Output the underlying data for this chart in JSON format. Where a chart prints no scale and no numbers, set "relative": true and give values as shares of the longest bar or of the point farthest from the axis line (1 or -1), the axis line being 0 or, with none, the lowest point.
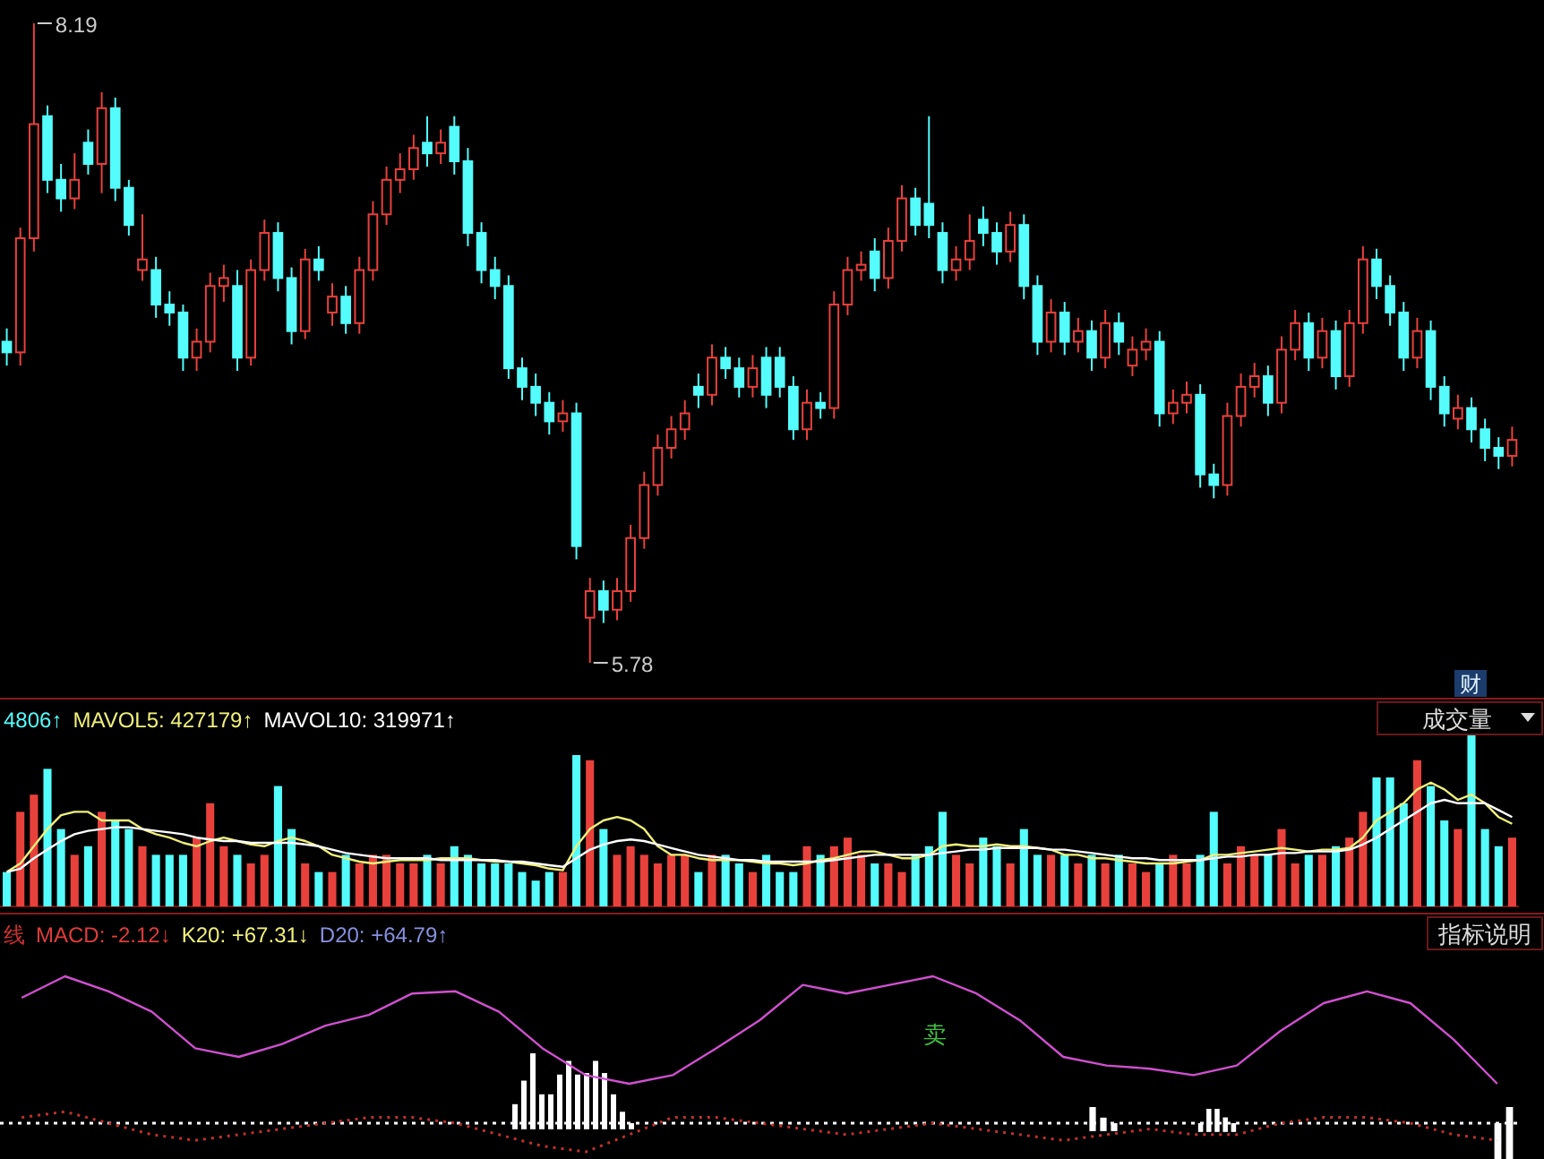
{
  "chart_data": [
    {
      "type": "candlestick",
      "categories": [
        null,
        null,
        null,
        null,
        null,
        null,
        null,
        null,
        null,
        null,
        null,
        null,
        null,
        null,
        null,
        null,
        null,
        null,
        null,
        null,
        null,
        null,
        null,
        null,
        null,
        null,
        null,
        null,
        null,
        null,
        null,
        null,
        null,
        null,
        null,
        null,
        null,
        null,
        null,
        null,
        null,
        null,
        null,
        null,
        null,
        null,
        null,
        null,
        null,
        null,
        null,
        null,
        null,
        null,
        null,
        null,
        null,
        null,
        null,
        null,
        null,
        null,
        null,
        null,
        null,
        null,
        null,
        null,
        null,
        null,
        null,
        null,
        null,
        null,
        null,
        null,
        null,
        null,
        null,
        null,
        null,
        null,
        null,
        null,
        null,
        null,
        null,
        null,
        null,
        null,
        null,
        null,
        null,
        null,
        null,
        null,
        null,
        null,
        null,
        null,
        null,
        null,
        null,
        null,
        null,
        null,
        null,
        null,
        null,
        null,
        null,
        null
      ],
      "ohlc": [
        [
          6.99,
          7.04,
          6.9,
          6.95
        ],
        [
          6.95,
          7.42,
          6.9,
          7.38
        ],
        [
          7.38,
          8.19,
          7.33,
          7.81
        ],
        [
          7.84,
          7.88,
          7.55,
          7.6
        ],
        [
          7.6,
          7.66,
          7.48,
          7.53
        ],
        [
          7.53,
          7.7,
          7.49,
          7.6
        ],
        [
          7.74,
          7.79,
          7.62,
          7.66
        ],
        [
          7.66,
          7.93,
          7.55,
          7.87
        ],
        [
          7.87,
          7.91,
          7.52,
          7.57
        ],
        [
          7.57,
          7.6,
          7.39,
          7.43
        ],
        [
          7.26,
          7.47,
          7.22,
          7.3
        ],
        [
          7.26,
          7.31,
          7.08,
          7.13
        ],
        [
          7.13,
          7.18,
          7.05,
          7.1
        ],
        [
          7.1,
          7.13,
          6.88,
          6.93
        ],
        [
          6.93,
          7.04,
          6.88,
          6.99
        ],
        [
          6.99,
          7.25,
          6.95,
          7.2
        ],
        [
          7.2,
          7.28,
          7.14,
          7.23
        ],
        [
          7.2,
          7.26,
          6.88,
          6.93
        ],
        [
          6.93,
          7.3,
          6.9,
          7.26
        ],
        [
          7.26,
          7.45,
          7.22,
          7.4
        ],
        [
          7.4,
          7.44,
          7.18,
          7.23
        ],
        [
          7.23,
          7.27,
          6.98,
          7.03
        ],
        [
          7.03,
          7.34,
          7.0,
          7.3
        ],
        [
          7.3,
          7.35,
          7.22,
          7.26
        ],
        [
          7.1,
          7.21,
          7.05,
          7.16
        ],
        [
          7.16,
          7.2,
          7.02,
          7.06
        ],
        [
          7.06,
          7.31,
          7.02,
          7.26
        ],
        [
          7.26,
          7.52,
          7.22,
          7.47
        ],
        [
          7.47,
          7.65,
          7.43,
          7.6
        ],
        [
          7.6,
          7.7,
          7.55,
          7.64
        ],
        [
          7.64,
          7.77,
          7.6,
          7.72
        ],
        [
          7.74,
          7.84,
          7.65,
          7.7
        ],
        [
          7.7,
          7.79,
          7.66,
          7.74
        ],
        [
          7.8,
          7.84,
          7.62,
          7.67
        ],
        [
          7.67,
          7.72,
          7.35,
          7.4
        ],
        [
          7.4,
          7.44,
          7.21,
          7.26
        ],
        [
          7.26,
          7.31,
          7.15,
          7.2
        ],
        [
          7.2,
          7.24,
          6.85,
          6.89
        ],
        [
          6.89,
          6.93,
          6.77,
          6.82
        ],
        [
          6.82,
          6.87,
          6.71,
          6.76
        ],
        [
          6.76,
          6.8,
          6.64,
          6.69
        ],
        [
          6.69,
          6.77,
          6.65,
          6.72
        ],
        [
          6.72,
          6.76,
          6.17,
          6.22
        ],
        [
          5.95,
          6.1,
          5.78,
          6.05
        ],
        [
          6.05,
          6.09,
          5.93,
          5.98
        ],
        [
          5.98,
          6.1,
          5.94,
          6.05
        ],
        [
          6.05,
          6.3,
          6.01,
          6.25
        ],
        [
          6.25,
          6.5,
          6.21,
          6.45
        ],
        [
          6.45,
          6.64,
          6.41,
          6.59
        ],
        [
          6.59,
          6.71,
          6.55,
          6.66
        ],
        [
          6.66,
          6.77,
          6.62,
          6.72
        ],
        [
          6.82,
          6.87,
          6.74,
          6.79
        ],
        [
          6.79,
          6.98,
          6.75,
          6.93
        ],
        [
          6.93,
          6.97,
          6.85,
          6.89
        ],
        [
          6.89,
          6.93,
          6.78,
          6.82
        ],
        [
          6.82,
          6.94,
          6.78,
          6.89
        ],
        [
          6.93,
          6.97,
          6.74,
          6.79
        ],
        [
          6.93,
          6.97,
          6.78,
          6.82
        ],
        [
          6.82,
          6.86,
          6.62,
          6.66
        ],
        [
          6.66,
          6.81,
          6.62,
          6.76
        ],
        [
          6.76,
          6.8,
          6.7,
          6.74
        ],
        [
          6.74,
          7.18,
          6.7,
          7.13
        ],
        [
          7.13,
          7.31,
          7.09,
          7.26
        ],
        [
          7.26,
          7.33,
          7.22,
          7.28
        ],
        [
          7.33,
          7.38,
          7.18,
          7.23
        ],
        [
          7.23,
          7.42,
          7.19,
          7.37
        ],
        [
          7.37,
          7.58,
          7.33,
          7.53
        ],
        [
          7.53,
          7.57,
          7.39,
          7.43
        ],
        [
          7.51,
          7.84,
          7.38,
          7.43
        ],
        [
          7.4,
          7.44,
          7.21,
          7.26
        ],
        [
          7.26,
          7.35,
          7.22,
          7.3
        ],
        [
          7.3,
          7.47,
          7.26,
          7.37
        ],
        [
          7.45,
          7.5,
          7.35,
          7.4
        ],
        [
          7.4,
          7.44,
          7.28,
          7.33
        ],
        [
          7.33,
          7.48,
          7.29,
          7.43
        ],
        [
          7.43,
          7.47,
          7.15,
          7.2
        ],
        [
          7.2,
          7.24,
          6.94,
          6.99
        ],
        [
          6.99,
          7.15,
          6.95,
          7.1
        ],
        [
          7.1,
          7.14,
          6.94,
          6.99
        ],
        [
          6.99,
          7.08,
          6.95,
          7.03
        ],
        [
          7.03,
          7.07,
          6.88,
          6.93
        ],
        [
          6.93,
          7.11,
          6.89,
          7.06
        ],
        [
          7.06,
          7.1,
          6.94,
          6.99
        ],
        [
          6.9,
          7.01,
          6.86,
          6.96
        ],
        [
          6.96,
          7.04,
          6.92,
          6.99
        ],
        [
          6.99,
          7.03,
          6.67,
          6.72
        ],
        [
          6.72,
          6.81,
          6.68,
          6.76
        ],
        [
          6.76,
          6.84,
          6.72,
          6.79
        ],
        [
          6.79,
          6.83,
          6.44,
          6.49
        ],
        [
          6.49,
          6.53,
          6.4,
          6.45
        ],
        [
          6.45,
          6.76,
          6.41,
          6.71
        ],
        [
          6.71,
          6.87,
          6.67,
          6.82
        ],
        [
          6.82,
          6.91,
          6.78,
          6.86
        ],
        [
          6.86,
          6.9,
          6.71,
          6.76
        ],
        [
          6.76,
          7.01,
          6.72,
          6.96
        ],
        [
          6.96,
          7.11,
          6.92,
          7.06
        ],
        [
          7.06,
          7.1,
          6.88,
          6.93
        ],
        [
          6.93,
          7.08,
          6.89,
          7.03
        ],
        [
          7.03,
          7.07,
          6.81,
          6.86
        ],
        [
          6.86,
          7.11,
          6.82,
          7.06
        ],
        [
          7.06,
          7.35,
          7.02,
          7.3
        ],
        [
          7.3,
          7.34,
          7.15,
          7.2
        ],
        [
          7.2,
          7.24,
          7.05,
          7.1
        ],
        [
          7.1,
          7.14,
          6.88,
          6.93
        ],
        [
          6.93,
          7.08,
          6.89,
          7.03
        ],
        [
          7.03,
          7.07,
          6.77,
          6.82
        ],
        [
          6.82,
          6.86,
          6.67,
          6.72
        ],
        [
          6.7,
          6.79,
          6.66,
          6.74
        ],
        [
          6.74,
          6.78,
          6.61,
          6.66
        ],
        [
          6.66,
          6.7,
          6.54,
          6.59
        ],
        [
          6.59,
          6.63,
          6.51,
          6.56
        ],
        [
          6.56,
          6.67,
          6.52,
          6.62
        ]
      ],
      "colors": [
        "#54fcfc",
        "#e8413c",
        "#e8413c",
        "#54fcfc",
        "#54fcfc",
        "#e8413c",
        "#54fcfc",
        "#e8413c",
        "#54fcfc",
        "#54fcfc",
        "#e8413c",
        "#54fcfc",
        "#54fcfc",
        "#54fcfc",
        "#e8413c",
        "#e8413c",
        "#e8413c",
        "#54fcfc",
        "#e8413c",
        "#e8413c",
        "#54fcfc",
        "#54fcfc",
        "#e8413c",
        "#54fcfc",
        "#e8413c",
        "#54fcfc",
        "#e8413c",
        "#e8413c",
        "#e8413c",
        "#e8413c",
        "#e8413c",
        "#54fcfc",
        "#e8413c",
        "#54fcfc",
        "#54fcfc",
        "#54fcfc",
        "#54fcfc",
        "#54fcfc",
        "#54fcfc",
        "#54fcfc",
        "#54fcfc",
        "#e8413c",
        "#54fcfc",
        "#e8413c",
        "#54fcfc",
        "#e8413c",
        "#e8413c",
        "#e8413c",
        "#e8413c",
        "#e8413c",
        "#e8413c",
        "#54fcfc",
        "#e8413c",
        "#54fcfc",
        "#54fcfc",
        "#e8413c",
        "#54fcfc",
        "#54fcfc",
        "#54fcfc",
        "#e8413c",
        "#54fcfc",
        "#e8413c",
        "#e8413c",
        "#e8413c",
        "#54fcfc",
        "#e8413c",
        "#e8413c",
        "#54fcfc",
        "#54fcfc",
        "#54fcfc",
        "#e8413c",
        "#e8413c",
        "#54fcfc",
        "#54fcfc",
        "#e8413c",
        "#54fcfc",
        "#54fcfc",
        "#e8413c",
        "#54fcfc",
        "#e8413c",
        "#54fcfc",
        "#e8413c",
        "#54fcfc",
        "#e8413c",
        "#e8413c",
        "#54fcfc",
        "#e8413c",
        "#e8413c",
        "#54fcfc",
        "#54fcfc",
        "#e8413c",
        "#e8413c",
        "#e8413c",
        "#54fcfc",
        "#e8413c",
        "#e8413c",
        "#54fcfc",
        "#e8413c",
        "#54fcfc",
        "#e8413c",
        "#e8413c",
        "#54fcfc",
        "#54fcfc",
        "#54fcfc",
        "#e8413c",
        "#54fcfc",
        "#54fcfc",
        "#e8413c",
        "#54fcfc",
        "#54fcfc",
        "#54fcfc",
        "#e8413c"
      ],
      "annotations": [
        "8.19",
        "5.78",
        "财"
      ]
    },
    {
      "type": "bar",
      "relative": true,
      "categories": [
        null,
        null,
        null,
        null,
        null,
        null,
        null,
        null,
        null,
        null,
        null,
        null,
        null,
        null,
        null,
        null,
        null,
        null,
        null,
        null,
        null,
        null,
        null,
        null,
        null,
        null,
        null,
        null,
        null,
        null,
        null,
        null,
        null,
        null,
        null,
        null,
        null,
        null,
        null,
        null,
        null,
        null,
        null,
        null,
        null,
        null,
        null,
        null,
        null,
        null,
        null,
        null,
        null,
        null,
        null,
        null,
        null,
        null,
        null,
        null,
        null,
        null,
        null,
        null,
        null,
        null,
        null,
        null,
        null,
        null,
        null,
        null,
        null,
        null,
        null,
        null,
        null,
        null,
        null,
        null,
        null,
        null,
        null,
        null,
        null,
        null,
        null,
        null,
        null,
        null,
        null,
        null,
        null,
        null,
        null,
        null,
        null,
        null,
        null,
        null,
        null,
        null,
        null,
        null,
        null,
        null,
        null,
        null,
        null,
        null,
        null,
        null
      ],
      "series": [
        {
          "type": "bar",
          "values": [
            0.2,
            0.55,
            0.65,
            0.8,
            0.45,
            0.3,
            0.35,
            0.55,
            0.5,
            0.45,
            0.35,
            0.3,
            0.3,
            0.3,
            0.4,
            0.6,
            0.35,
            0.3,
            0.25,
            0.3,
            0.7,
            0.45,
            0.25,
            0.2,
            0.2,
            0.3,
            0.25,
            0.3,
            0.3,
            0.25,
            0.25,
            0.3,
            0.25,
            0.35,
            0.3,
            0.25,
            0.25,
            0.25,
            0.2,
            0.15,
            0.2,
            0.2,
            0.88,
            0.85,
            0.45,
            0.3,
            0.35,
            0.3,
            0.25,
            0.3,
            0.3,
            0.2,
            0.3,
            0.3,
            0.25,
            0.2,
            0.3,
            0.2,
            0.2,
            0.35,
            0.3,
            0.35,
            0.4,
            0.3,
            0.25,
            0.25,
            0.2,
            0.3,
            0.35,
            0.55,
            0.3,
            0.25,
            0.4,
            0.35,
            0.25,
            0.45,
            0.3,
            0.3,
            0.3,
            0.25,
            0.3,
            0.25,
            0.3,
            0.25,
            0.2,
            0.25,
            0.3,
            0.25,
            0.3,
            0.55,
            0.25,
            0.35,
            0.3,
            0.3,
            0.45,
            0.25,
            0.3,
            0.3,
            0.35,
            0.4,
            0.55,
            0.75,
            0.75,
            0.6,
            0.85,
            0.7,
            0.5,
            0.45,
            1.0,
            0.45,
            0.35,
            0.4
          ],
          "colors": [
            "#54fcfc",
            "#e8413c",
            "#e8413c",
            "#54fcfc",
            "#54fcfc",
            "#e8413c",
            "#54fcfc",
            "#e8413c",
            "#54fcfc",
            "#54fcfc",
            "#e8413c",
            "#54fcfc",
            "#54fcfc",
            "#54fcfc",
            "#e8413c",
            "#e8413c",
            "#e8413c",
            "#54fcfc",
            "#e8413c",
            "#e8413c",
            "#54fcfc",
            "#54fcfc",
            "#e8413c",
            "#54fcfc",
            "#e8413c",
            "#54fcfc",
            "#e8413c",
            "#e8413c",
            "#e8413c",
            "#e8413c",
            "#e8413c",
            "#54fcfc",
            "#e8413c",
            "#54fcfc",
            "#54fcfc",
            "#54fcfc",
            "#54fcfc",
            "#54fcfc",
            "#54fcfc",
            "#54fcfc",
            "#54fcfc",
            "#e8413c",
            "#54fcfc",
            "#e8413c",
            "#54fcfc",
            "#e8413c",
            "#e8413c",
            "#e8413c",
            "#e8413c",
            "#e8413c",
            "#e8413c",
            "#54fcfc",
            "#e8413c",
            "#54fcfc",
            "#54fcfc",
            "#e8413c",
            "#54fcfc",
            "#54fcfc",
            "#54fcfc",
            "#e8413c",
            "#54fcfc",
            "#e8413c",
            "#e8413c",
            "#e8413c",
            "#54fcfc",
            "#e8413c",
            "#e8413c",
            "#54fcfc",
            "#54fcfc",
            "#54fcfc",
            "#e8413c",
            "#e8413c",
            "#54fcfc",
            "#54fcfc",
            "#e8413c",
            "#54fcfc",
            "#54fcfc",
            "#e8413c",
            "#54fcfc",
            "#e8413c",
            "#54fcfc",
            "#e8413c",
            "#54fcfc",
            "#e8413c",
            "#e8413c",
            "#54fcfc",
            "#e8413c",
            "#e8413c",
            "#54fcfc",
            "#54fcfc",
            "#e8413c",
            "#e8413c",
            "#e8413c",
            "#54fcfc",
            "#e8413c",
            "#e8413c",
            "#54fcfc",
            "#e8413c",
            "#54fcfc",
            "#e8413c",
            "#e8413c",
            "#54fcfc",
            "#54fcfc",
            "#54fcfc",
            "#e8413c",
            "#54fcfc",
            "#54fcfc",
            "#e8413c",
            "#54fcfc",
            "#54fcfc",
            "#54fcfc",
            "#e8413c"
          ]
        },
        {
          "type": "line",
          "color": "#f0f07a",
          "values": [
            0.2,
            0.25,
            0.35,
            0.45,
            0.53,
            0.55,
            0.55,
            0.5,
            0.5,
            0.5,
            0.45,
            0.42,
            0.4,
            0.37,
            0.35,
            0.38,
            0.4,
            0.38,
            0.36,
            0.35,
            0.38,
            0.4,
            0.38,
            0.35,
            0.3,
            0.28,
            0.26,
            0.25,
            0.26,
            0.27,
            0.27,
            0.27,
            0.28,
            0.28,
            0.28,
            0.27,
            0.26,
            0.26,
            0.25,
            0.24,
            0.22,
            0.21,
            0.35,
            0.45,
            0.5,
            0.52,
            0.5,
            0.45,
            0.35,
            0.3,
            0.3,
            0.28,
            0.27,
            0.27,
            0.27,
            0.26,
            0.25,
            0.25,
            0.24,
            0.25,
            0.27,
            0.28,
            0.3,
            0.32,
            0.32,
            0.3,
            0.28,
            0.28,
            0.3,
            0.35,
            0.36,
            0.35,
            0.35,
            0.36,
            0.35,
            0.35,
            0.34,
            0.33,
            0.3,
            0.3,
            0.28,
            0.28,
            0.27,
            0.26,
            0.25,
            0.25,
            0.25,
            0.26,
            0.27,
            0.3,
            0.3,
            0.31,
            0.32,
            0.33,
            0.34,
            0.33,
            0.32,
            0.33,
            0.33,
            0.34,
            0.4,
            0.5,
            0.55,
            0.6,
            0.68,
            0.72,
            0.68,
            0.62,
            0.65,
            0.6,
            0.52,
            0.48
          ]
        },
        {
          "type": "line",
          "color": "#ffffff",
          "values": [
            0.2,
            0.22,
            0.28,
            0.33,
            0.38,
            0.42,
            0.44,
            0.45,
            0.46,
            0.46,
            0.45,
            0.44,
            0.43,
            0.42,
            0.4,
            0.39,
            0.38,
            0.38,
            0.37,
            0.37,
            0.37,
            0.37,
            0.36,
            0.35,
            0.33,
            0.31,
            0.3,
            0.29,
            0.28,
            0.28,
            0.28,
            0.28,
            0.27,
            0.27,
            0.27,
            0.27,
            0.27,
            0.26,
            0.26,
            0.25,
            0.24,
            0.23,
            0.28,
            0.33,
            0.36,
            0.38,
            0.39,
            0.38,
            0.36,
            0.34,
            0.32,
            0.3,
            0.29,
            0.28,
            0.27,
            0.27,
            0.26,
            0.26,
            0.26,
            0.26,
            0.26,
            0.27,
            0.28,
            0.29,
            0.3,
            0.3,
            0.3,
            0.3,
            0.3,
            0.31,
            0.32,
            0.33,
            0.33,
            0.34,
            0.34,
            0.34,
            0.34,
            0.33,
            0.33,
            0.32,
            0.31,
            0.3,
            0.29,
            0.28,
            0.28,
            0.27,
            0.27,
            0.27,
            0.27,
            0.28,
            0.29,
            0.29,
            0.3,
            0.3,
            0.31,
            0.31,
            0.32,
            0.32,
            0.32,
            0.33,
            0.36,
            0.4,
            0.45,
            0.5,
            0.55,
            0.6,
            0.62,
            0.6,
            0.6,
            0.6,
            0.56,
            0.52
          ]
        }
      ],
      "annotations": [
        "4806↑",
        "MAVOL5: 427179↑",
        "MAVOL10: 319971↑",
        "成交量"
      ]
    },
    {
      "type": "line",
      "relative": true,
      "categories": [
        null,
        null,
        null,
        null,
        null,
        null,
        null,
        null,
        null,
        null,
        null,
        null,
        null,
        null,
        null,
        null,
        null,
        null,
        null,
        null,
        null,
        null,
        null,
        null,
        null,
        null,
        null,
        null,
        null,
        null,
        null,
        null,
        null,
        null,
        null
      ],
      "series": [
        {
          "type": "line",
          "color": "#d050d0",
          "values": [
            0.8,
            1.0,
            0.86,
            0.67,
            0.33,
            0.25,
            0.37,
            0.54,
            0.64,
            0.84,
            0.86,
            0.67,
            0.33,
            0.08,
            0,
            0.08,
            0.33,
            0.59,
            0.92,
            0.84,
            0.92,
            1.0,
            0.84,
            0.59,
            0.25,
            0.17,
            0.14,
            0.08,
            0.17,
            0.49,
            0.75,
            0.86,
            0.75,
            0.41,
            0
          ]
        }
      ],
      "annotations": [
        "线",
        "MACD: -2.12↓",
        "K20: +67.31↓",
        "D20: +64.79↑",
        "指标说明",
        "卖"
      ]
    },
    {
      "type": "bar",
      "relative": true,
      "categories": [
        null,
        null,
        null,
        null,
        null,
        null,
        null,
        null,
        null,
        null,
        null,
        null,
        null,
        null
      ],
      "series": [
        {
          "type": "bar",
          "color": "#ffffff",
          "values": [
            0.33,
            0.64,
            1.0,
            0.46,
            0.46,
            0.72,
            0.9,
            0.72,
            0.74,
            0.9,
            0.74,
            0.46,
            0.23,
            0.08
          ]
        }
      ]
    },
    {
      "type": "line",
      "relative": true,
      "categories": [
        null,
        null,
        null,
        null,
        null,
        null,
        null,
        null,
        null,
        null,
        null,
        null,
        null,
        null,
        null,
        null,
        null,
        null,
        null,
        null,
        null,
        null,
        null,
        null,
        null,
        null,
        null,
        null,
        null,
        null,
        null,
        null,
        null,
        null,
        null
      ],
      "series": [
        {
          "type": "line",
          "color": "#c03030",
          "line_style": "dotted",
          "values": [
            0.2,
            0.4,
            0,
            -0.4,
            -0.6,
            -0.4,
            -0.2,
            0,
            0.2,
            0.2,
            0,
            -0.4,
            -0.8,
            -1.0,
            -0.4,
            0.2,
            0.2,
            0,
            -0.2,
            -0.4,
            -0.2,
            0,
            -0.2,
            -0.4,
            -0.6,
            -0.4,
            -0.2,
            -0.4,
            -0.4,
            0,
            0.2,
            0.2,
            0,
            -0.4,
            -0.6
          ]
        }
      ],
      "ref_lines": [
        {
          "axis": "y",
          "value": 0,
          "color": "#ffffff",
          "line_style": "dotted"
        }
      ]
    },
    {
      "type": "bar",
      "relative": true,
      "categories": [
        null,
        null,
        null
      ],
      "series": [
        {
          "type": "bar",
          "color": "#ffffff",
          "values": [
            1.0,
            0.56,
            0.33
          ]
        }
      ]
    },
    {
      "type": "bar",
      "relative": true,
      "categories": [
        null,
        null,
        null,
        null,
        null
      ],
      "series": [
        {
          "type": "bar",
          "color": "#ffffff",
          "values": [
            0.38,
            1.0,
            1.0,
            0.63,
            0.38
          ]
        }
      ]
    },
    {
      "type": "bar",
      "relative": true,
      "categories": [
        null,
        null
      ],
      "series": [
        {
          "type": "bar",
          "color": "#ffffff",
          "values": [
            0.78,
            1.0
          ]
        }
      ]
    }
  ]
}
